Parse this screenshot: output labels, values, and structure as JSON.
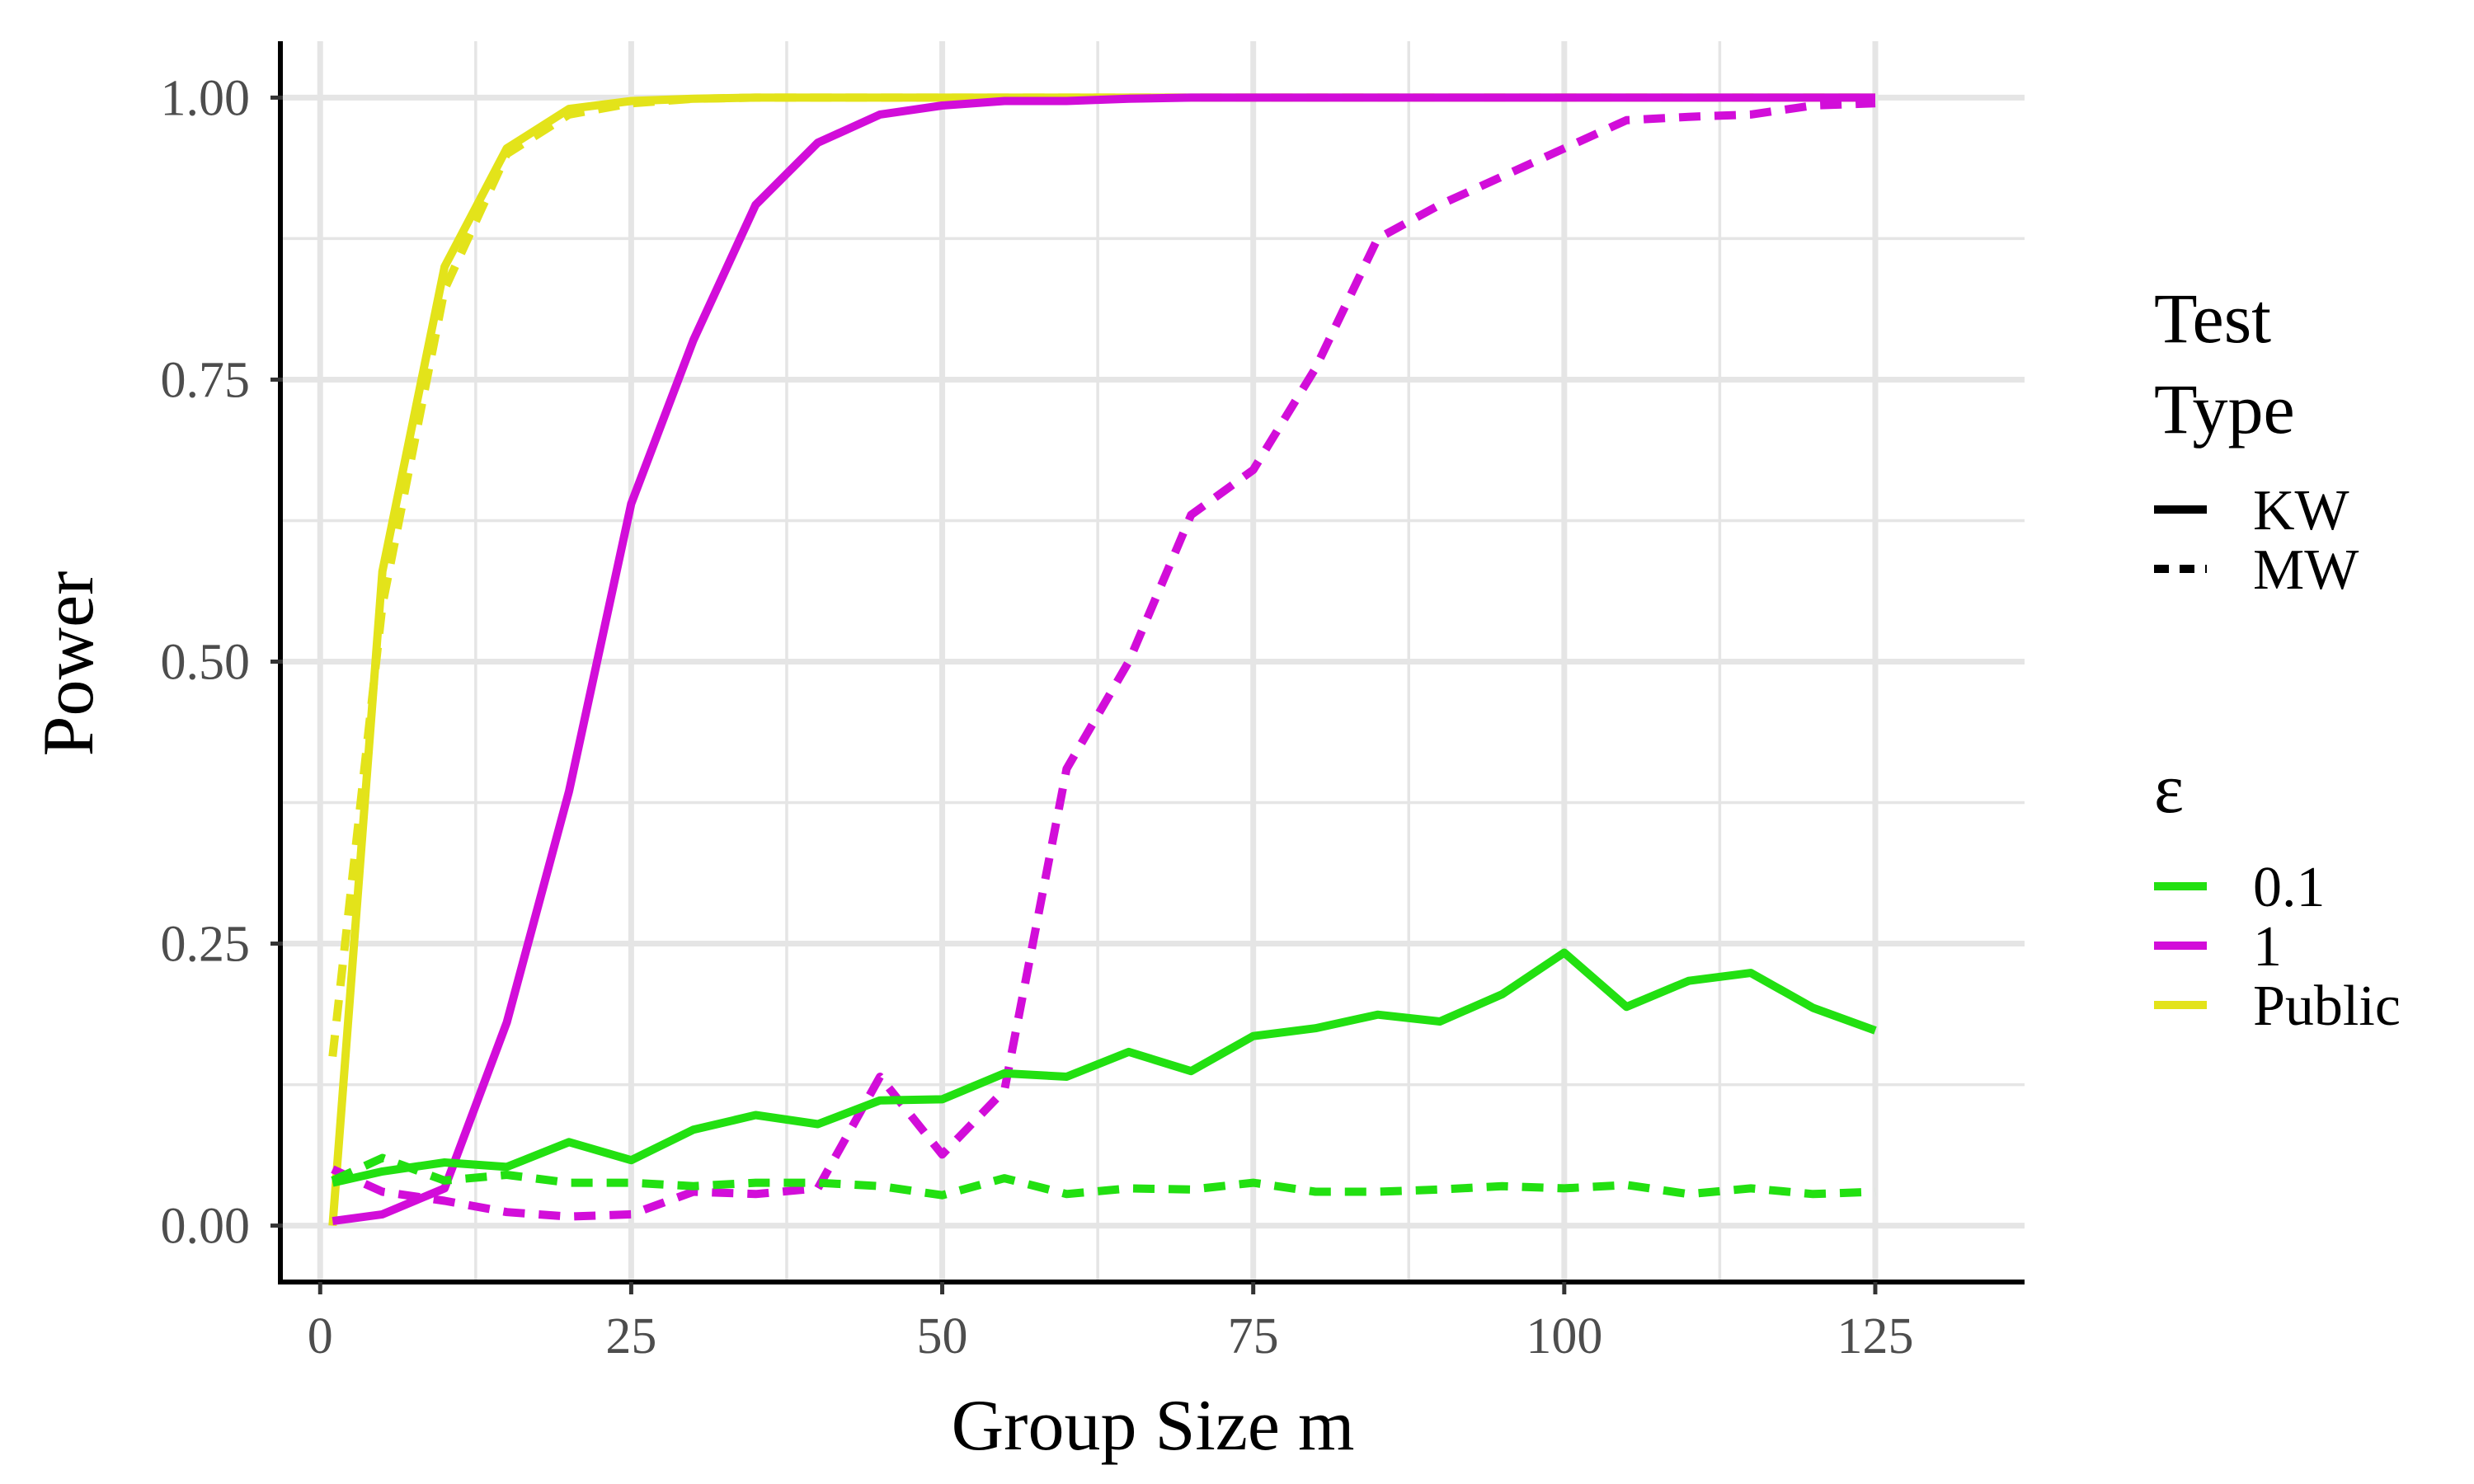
{
  "chart_data": {
    "type": "line",
    "title": "",
    "xlabel": "Group Size m",
    "ylabel": "Power",
    "xlim": [
      -3,
      137
    ],
    "ylim": [
      -0.05,
      1.05
    ],
    "x_ticks": [
      0,
      25,
      50,
      75,
      100,
      125
    ],
    "x_tick_labels": [
      "0",
      "25",
      "50",
      "75",
      "100",
      "125"
    ],
    "y_ticks": [
      0,
      0.25,
      0.5,
      0.75,
      1.0
    ],
    "y_tick_labels": [
      "0.00",
      "0.25",
      "0.50",
      "0.75",
      "1.00"
    ],
    "grid": true,
    "legend_position": "right",
    "legends": [
      {
        "title": [
          "Test",
          "Type"
        ],
        "entries": [
          {
            "label": "KW",
            "linetype": "solid"
          },
          {
            "label": "MW",
            "linetype": "dashed"
          }
        ]
      },
      {
        "title": [
          "ε"
        ],
        "entries": [
          {
            "label": "0.1",
            "color": "#22e011"
          },
          {
            "label": "1",
            "color": "#d20dd9"
          },
          {
            "label": "Public",
            "color": "#e3e31a"
          }
        ]
      }
    ],
    "series": [
      {
        "epsilon": "Public",
        "test": "KW",
        "color": "#e3e31a",
        "dash": "solid",
        "x": [
          1,
          5,
          10,
          15,
          20,
          25,
          30,
          35,
          40,
          45,
          50,
          55,
          60,
          65,
          70,
          75,
          80,
          85,
          90,
          95,
          100,
          105,
          110,
          115,
          120,
          125
        ],
        "y": [
          0.0,
          0.58,
          0.85,
          0.955,
          0.99,
          0.997,
          0.999,
          1.0,
          1.0,
          1.0,
          1.0,
          1.0,
          1.0,
          1.0,
          1.0,
          1.0,
          1.0,
          1.0,
          1.0,
          1.0,
          1.0,
          1.0,
          1.0,
          1.0,
          1.0,
          1.0
        ]
      },
      {
        "epsilon": "Public",
        "test": "MW",
        "color": "#e3e31a",
        "dash": "dashed",
        "x": [
          1,
          5,
          10,
          15,
          20,
          25,
          30,
          35,
          40,
          45,
          50,
          55,
          60,
          65,
          70,
          75,
          80,
          85,
          90,
          95,
          100,
          105,
          110,
          115,
          120,
          125
        ],
        "y": [
          0.15,
          0.55,
          0.83,
          0.95,
          0.985,
          0.995,
          0.999,
          1.0,
          1.0,
          1.0,
          1.0,
          1.0,
          1.0,
          1.0,
          1.0,
          1.0,
          1.0,
          1.0,
          1.0,
          1.0,
          1.0,
          1.0,
          1.0,
          1.0,
          1.0,
          1.0
        ]
      },
      {
        "epsilon": "1",
        "test": "KW",
        "color": "#d20dd9",
        "dash": "solid",
        "x": [
          1,
          5,
          10,
          15,
          20,
          25,
          30,
          35,
          40,
          45,
          50,
          55,
          60,
          65,
          70,
          75,
          80,
          85,
          90,
          95,
          100,
          105,
          110,
          115,
          120,
          125
        ],
        "y": [
          0.004,
          0.01,
          0.033,
          0.18,
          0.385,
          0.64,
          0.785,
          0.905,
          0.96,
          0.985,
          0.993,
          0.997,
          0.997,
          0.999,
          1.0,
          1.0,
          1.0,
          1.0,
          1.0,
          1.0,
          1.0,
          1.0,
          1.0,
          1.0,
          1.0,
          1.0
        ]
      },
      {
        "epsilon": "1",
        "test": "MW",
        "color": "#d20dd9",
        "dash": "dashed",
        "x": [
          1,
          5,
          10,
          15,
          20,
          25,
          30,
          35,
          40,
          45,
          50,
          55,
          60,
          65,
          70,
          75,
          80,
          85,
          90,
          95,
          100,
          105,
          110,
          115,
          120,
          125
        ],
        "y": [
          0.05,
          0.03,
          0.022,
          0.012,
          0.008,
          0.01,
          0.03,
          0.028,
          0.033,
          0.132,
          0.063,
          0.12,
          0.405,
          0.5,
          0.63,
          0.67,
          0.76,
          0.875,
          0.905,
          0.93,
          0.955,
          0.98,
          0.983,
          0.985,
          0.993,
          0.995
        ]
      },
      {
        "epsilon": "0.1",
        "test": "KW",
        "color": "#22e011",
        "dash": "solid",
        "x": [
          1,
          5,
          10,
          15,
          20,
          25,
          30,
          35,
          40,
          45,
          50,
          55,
          60,
          65,
          70,
          75,
          80,
          85,
          90,
          95,
          100,
          105,
          110,
          115,
          120,
          125
        ],
        "y": [
          0.038,
          0.048,
          0.056,
          0.052,
          0.074,
          0.058,
          0.085,
          0.098,
          0.09,
          0.111,
          0.112,
          0.135,
          0.132,
          0.154,
          0.137,
          0.168,
          0.175,
          0.187,
          0.181,
          0.205,
          0.242,
          0.194,
          0.217,
          0.224,
          0.193,
          0.173
        ]
      },
      {
        "epsilon": "0.1",
        "test": "MW",
        "color": "#22e011",
        "dash": "dashed",
        "x": [
          1,
          5,
          10,
          15,
          20,
          25,
          30,
          35,
          40,
          45,
          50,
          55,
          60,
          65,
          70,
          75,
          80,
          85,
          90,
          95,
          100,
          105,
          110,
          115,
          120,
          125
        ],
        "y": [
          0.04,
          0.06,
          0.04,
          0.045,
          0.038,
          0.038,
          0.035,
          0.038,
          0.038,
          0.035,
          0.027,
          0.042,
          0.028,
          0.033,
          0.032,
          0.038,
          0.03,
          0.03,
          0.032,
          0.035,
          0.033,
          0.036,
          0.028,
          0.033,
          0.028,
          0.03
        ]
      }
    ]
  }
}
